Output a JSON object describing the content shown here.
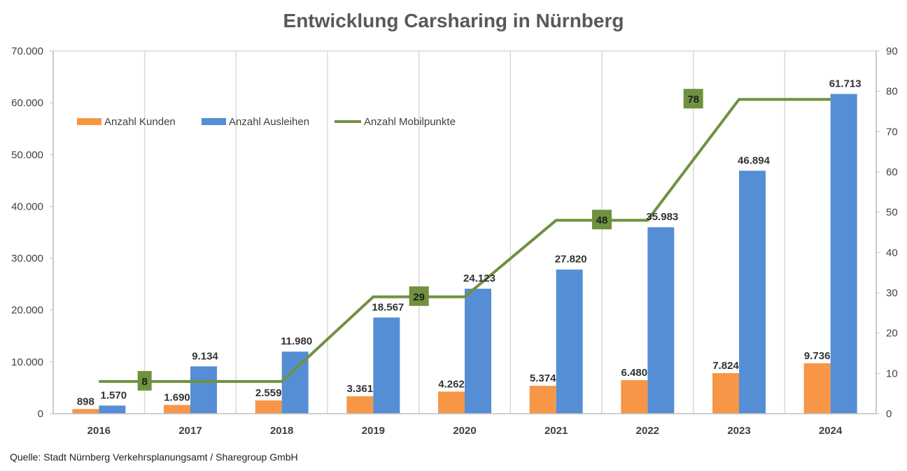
{
  "title": "Entwicklung Carsharing in Nürnberg",
  "source": "Quelle: Stadt Nürnberg Verkehrsplanungsamt / Sharegroup GmbH",
  "colors": {
    "kunden": "#f79646",
    "ausleihen": "#558ed5",
    "mobilpunkte": "#6f9140",
    "grid": "#d9d9d9",
    "axis": "#bfbfbf"
  },
  "chart_data": {
    "type": "bar",
    "title": "Entwicklung Carsharing in Nürnberg",
    "categories": [
      "2016",
      "2017",
      "2018",
      "2019",
      "2020",
      "2021",
      "2022",
      "2023",
      "2024"
    ],
    "series": [
      {
        "name": "Anzahl Kunden",
        "type": "bar",
        "axis": "left",
        "values": [
          898,
          1690,
          2559,
          3361,
          4262,
          5374,
          6480,
          7824,
          9736
        ],
        "labels": [
          "898",
          "1.690",
          "2.559",
          "3.361",
          "4.262",
          "5.374",
          "6.480",
          "7.824",
          "9.736"
        ]
      },
      {
        "name": "Anzahl Ausleihen",
        "type": "bar",
        "axis": "left",
        "values": [
          1570,
          9134,
          11980,
          18567,
          24123,
          27820,
          35983,
          46894,
          61713
        ],
        "labels": [
          "1.570",
          "9.134",
          "11.980",
          "18.567",
          "24.123",
          "27.820",
          "35.983",
          "46.894",
          "61.713"
        ]
      },
      {
        "name": "Anzahl Mobilpunkte",
        "type": "line",
        "axis": "right",
        "values": [
          8,
          8,
          8,
          29,
          29,
          48,
          48,
          78,
          78
        ],
        "labels": [
          "",
          "8",
          "",
          "",
          "29",
          "",
          "48",
          "78",
          ""
        ]
      }
    ],
    "y_left": {
      "ylim": [
        0,
        70000
      ],
      "ticks": [
        "0",
        "10.000",
        "20.000",
        "30.000",
        "40.000",
        "50.000",
        "60.000",
        "70.000"
      ]
    },
    "y_right": {
      "ylim": [
        0,
        90
      ],
      "ticks": [
        "0",
        "10",
        "20",
        "30",
        "40",
        "50",
        "60",
        "70",
        "80",
        "90"
      ]
    },
    "grid": "vertical",
    "legend": "top-left"
  }
}
